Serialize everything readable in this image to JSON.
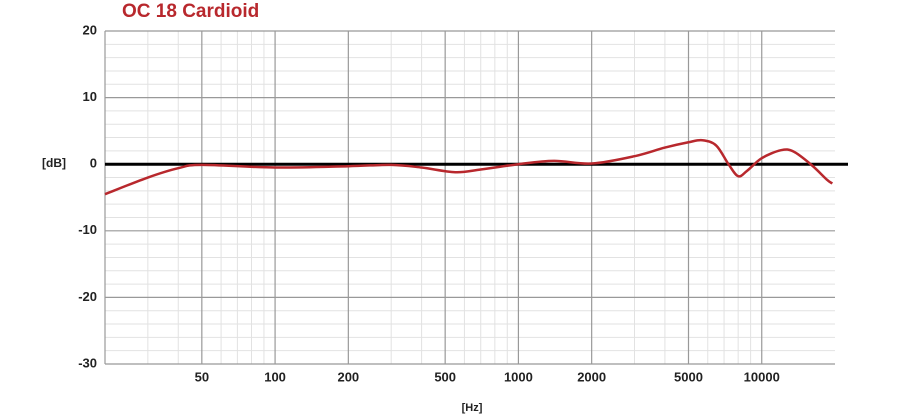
{
  "chart_data": {
    "type": "line",
    "title": "OC 18 Cardioid",
    "xlabel": "[Hz]",
    "ylabel": "[dB]",
    "xscale": "log",
    "xlim": [
      20,
      20000
    ],
    "ylim": [
      -30,
      20
    ],
    "xticks": [
      50,
      100,
      200,
      500,
      1000,
      2000,
      5000,
      10000
    ],
    "yticks": [
      20,
      10,
      0,
      -10,
      -20,
      -30
    ],
    "xminorticks": [
      30,
      40,
      60,
      70,
      80,
      90,
      300,
      400,
      600,
      700,
      800,
      900,
      3000,
      4000,
      6000,
      7000,
      8000,
      9000
    ],
    "yminorticks": [
      18,
      16,
      14,
      12,
      8,
      6,
      4,
      2,
      -2,
      -4,
      -6,
      -8,
      -12,
      -14,
      -16,
      -18,
      -22,
      -24,
      -26,
      -28
    ],
    "grid": true,
    "x": [
      20,
      30,
      40,
      50,
      100,
      200,
      300,
      400,
      550,
      700,
      1000,
      1400,
      2000,
      3000,
      4000,
      5000,
      5700,
      6500,
      7300,
      8000,
      8700,
      10000,
      12000,
      13500,
      16000,
      18500,
      19500
    ],
    "series": [
      {
        "name": "OC 18 Cardioid",
        "color": "#b8282d",
        "values": [
          -4.5,
          -2,
          -0.6,
          -0.1,
          -0.5,
          -0.3,
          -0.1,
          -0.5,
          -1.2,
          -0.8,
          0,
          0.5,
          0.1,
          1.2,
          2.5,
          3.3,
          3.6,
          2.8,
          0,
          -1.8,
          -1,
          0.9,
          2.1,
          1.9,
          -0.1,
          -2.3,
          -2.9
        ]
      }
    ]
  }
}
